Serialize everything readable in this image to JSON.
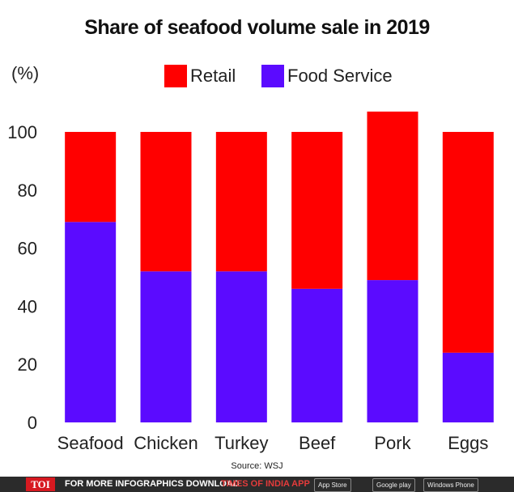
{
  "chart_data": {
    "type": "stacked_bar",
    "title": "Share of seafood volume sale in 2019",
    "ylabel": "(%)",
    "ylim": [
      0,
      100
    ],
    "yticks": [
      0,
      20,
      40,
      60,
      80,
      100
    ],
    "categories": [
      "Seafood",
      "Chicken",
      "Turkey",
      "Beef",
      "Pork",
      "Eggs"
    ],
    "series": [
      {
        "name": "Food Service",
        "color": "#5b0bff",
        "values": [
          69,
          52,
          52,
          46,
          49,
          24
        ]
      },
      {
        "name": "Retail",
        "color": "#ff0000",
        "values": [
          31,
          48,
          48,
          54,
          58,
          76
        ]
      }
    ],
    "legend_order": [
      "Retail",
      "Food Service"
    ],
    "source": "Source: WSJ"
  },
  "footer": {
    "logo": "TOI",
    "message": "FOR MORE  INFOGRAPHICS DOWNLOAD",
    "brand": "TIMES OF INDIA  APP",
    "stores": [
      "App Store",
      "Google play",
      "Windows Phone"
    ]
  }
}
